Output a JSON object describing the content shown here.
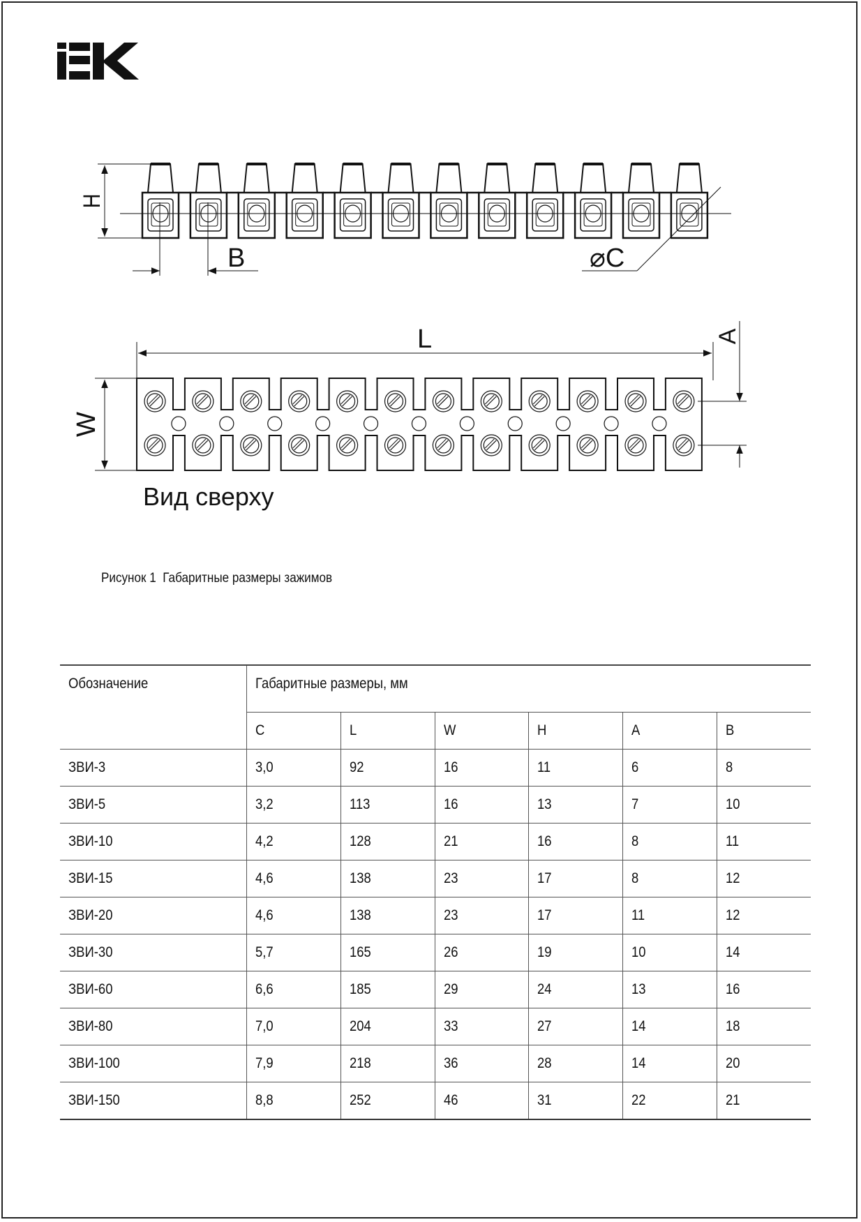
{
  "logo": {
    "text": "IEK"
  },
  "figure": {
    "labels": {
      "H": "H",
      "B": "B",
      "C": "⌀C",
      "L": "L",
      "W": "W",
      "A": "A"
    },
    "view_label": "Вид сверху",
    "caption": "Рисунок 1  Габаритные размеры зажимов"
  },
  "table": {
    "header_designation": "Обозначение",
    "header_group": "Габаритные размеры, мм",
    "columns": [
      "C",
      "L",
      "W",
      "H",
      "A",
      "B"
    ],
    "rows": [
      {
        "name": "ЗВИ-3",
        "values": [
          "3,0",
          "92",
          "16",
          "11",
          "6",
          "8"
        ]
      },
      {
        "name": "ЗВИ-5",
        "values": [
          "3,2",
          "113",
          "16",
          "13",
          "7",
          "10"
        ]
      },
      {
        "name": "ЗВИ-10",
        "values": [
          "4,2",
          "128",
          "21",
          "16",
          "8",
          "11"
        ]
      },
      {
        "name": "ЗВИ-15",
        "values": [
          "4,6",
          "138",
          "23",
          "17",
          "8",
          "12"
        ]
      },
      {
        "name": "ЗВИ-20",
        "values": [
          "4,6",
          "138",
          "23",
          "17",
          "11",
          "12"
        ]
      },
      {
        "name": "ЗВИ-30",
        "values": [
          "5,7",
          "165",
          "26",
          "19",
          "10",
          "14"
        ]
      },
      {
        "name": "ЗВИ-60",
        "values": [
          "6,6",
          "185",
          "29",
          "24",
          "13",
          "16"
        ]
      },
      {
        "name": "ЗВИ-80",
        "values": [
          "7,0",
          "204",
          "33",
          "27",
          "14",
          "18"
        ]
      },
      {
        "name": "ЗВИ-100",
        "values": [
          "7,9",
          "218",
          "36",
          "28",
          "14",
          "20"
        ]
      },
      {
        "name": "ЗВИ-150",
        "values": [
          "8,8",
          "252",
          "46",
          "31",
          "22",
          "21"
        ]
      }
    ]
  }
}
